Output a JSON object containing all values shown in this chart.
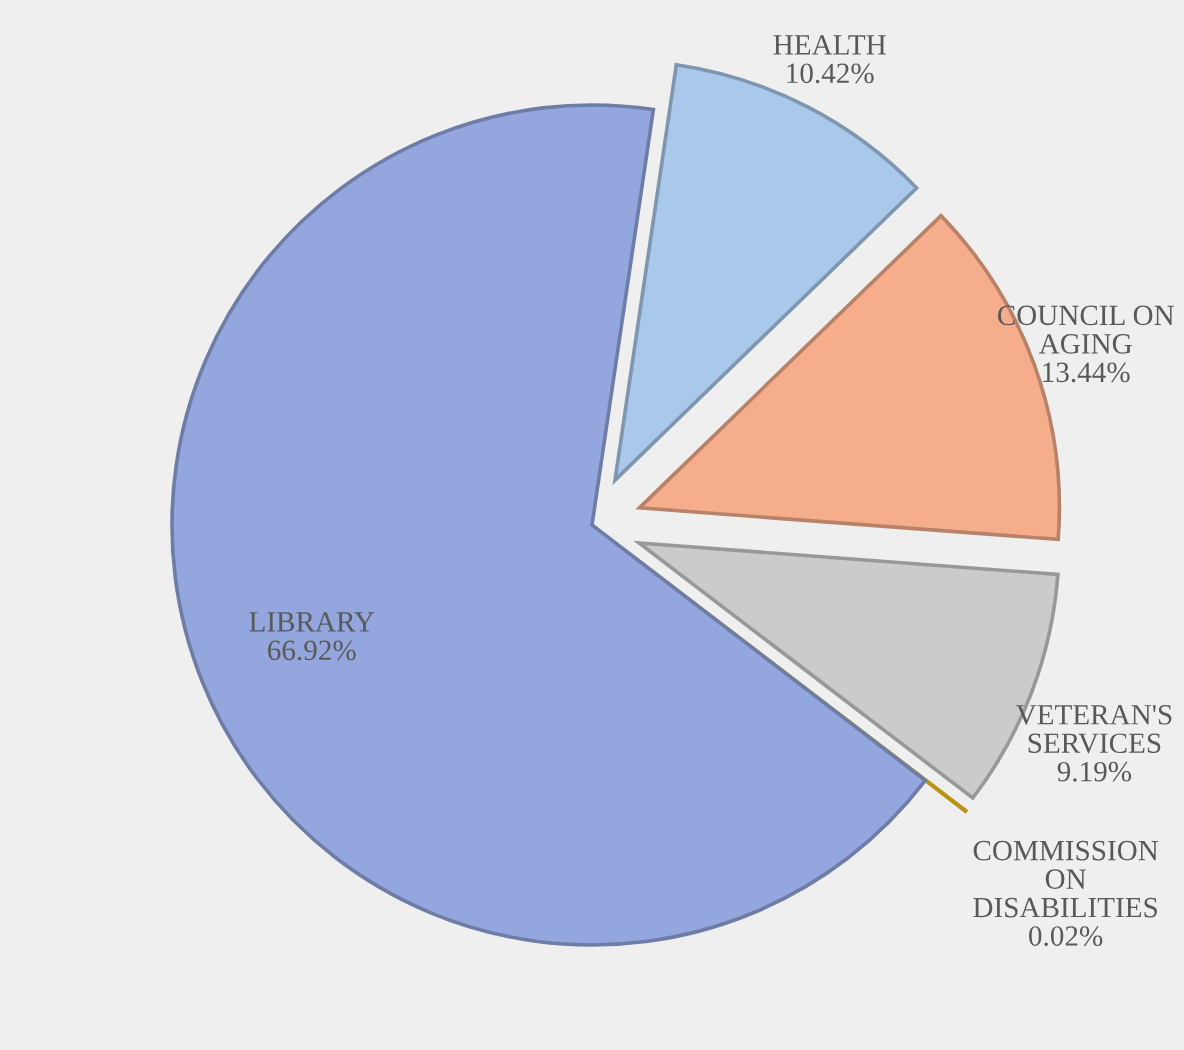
{
  "chart_data": {
    "type": "pie",
    "categories": [
      "HEALTH",
      "COUNCIL ON\nAGING",
      "VETERAN'S\nSERVICES",
      "COMMISSION\nON\nDISABILITIES",
      "LIBRARY"
    ],
    "values": [
      10.42,
      13.44,
      9.19,
      0.02,
      66.92
    ],
    "colors": [
      "#a9c8ea",
      "#f6ad8c",
      "#cbcbcb",
      "#f5c518",
      "#93a6dd"
    ],
    "value_labels": [
      "10.42%",
      "13.44%",
      "9.19%",
      "0.02%",
      "66.92%"
    ]
  }
}
